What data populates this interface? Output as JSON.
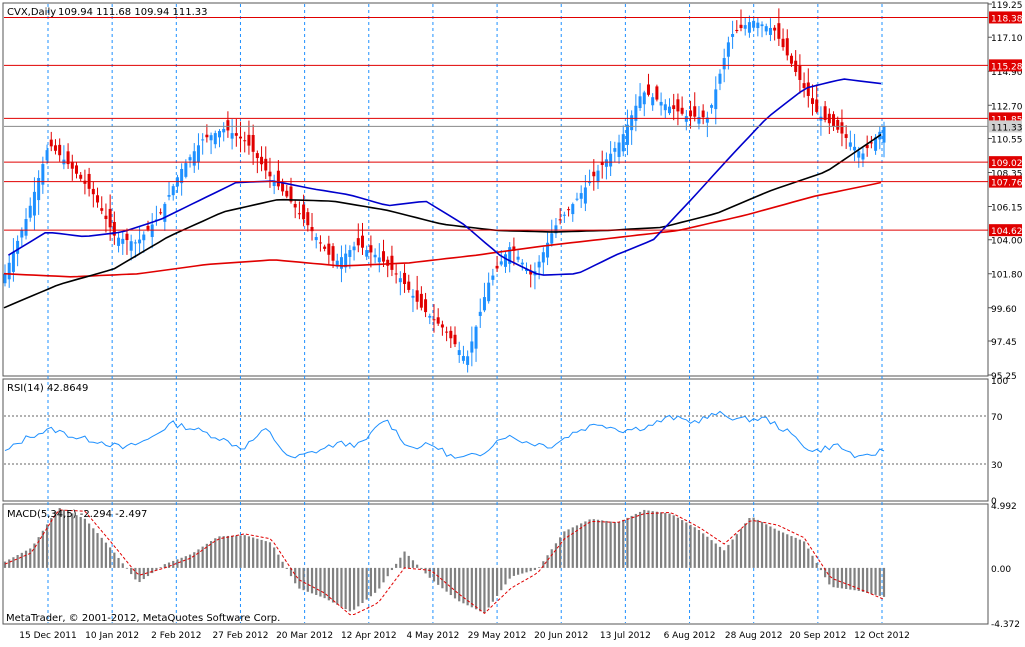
{
  "header": {
    "symbol": "CVX,Daily",
    "ohlc": "109.94 111.68 109.94 111.33"
  },
  "footer": {
    "copyright": "MetaTrader, © 2001-2012, MetaQuotes Software Corp."
  },
  "colors": {
    "bull_candle": "#1e90ff",
    "bear_candle": "#e00000",
    "sma_fast": "#0000cc",
    "sma_mid": "#000000",
    "sma_slow": "#e00000",
    "level_line": "#e00000",
    "rsi_line": "#1e90ff",
    "macd_hist": "#808080",
    "macd_signal": "#e00000",
    "grid": "#1e90ff",
    "border": "#555555"
  },
  "chart_data": [
    {
      "type": "candlestick",
      "panel": "price",
      "x_labels": [
        "15 Dec 2011",
        "10 Jan 2012",
        "2 Feb 2012",
        "27 Feb 2012",
        "20 Mar 2012",
        "12 Apr 2012",
        "4 May 2012",
        "29 May 2012",
        "20 Jun 2012",
        "13 Jul 2012",
        "6 Aug 2012",
        "28 Aug 2012",
        "20 Sep 2012",
        "12 Oct 2012"
      ],
      "y_ticks": [
        "119.25",
        "117.10",
        "114.90",
        "112.70",
        "110.55",
        "108.35",
        "106.15",
        "104.00",
        "101.80",
        "99.60",
        "97.45",
        "95.25"
      ],
      "ylim": [
        95.25,
        119.25
      ],
      "levels": [
        {
          "label": "118.38",
          "value": 118.38
        },
        {
          "label": "115.28",
          "value": 115.28
        },
        {
          "label": "111.85",
          "value": 111.85
        },
        {
          "label": "109.02",
          "value": 109.02
        },
        {
          "label": "107.76",
          "value": 107.76
        },
        {
          "label": "104.62",
          "value": 104.62
        }
      ],
      "current_price": {
        "label": "111.33",
        "value": 111.33
      },
      "close_anchors": [
        101.8,
        105.5,
        110.2,
        108.7,
        107.0,
        104.2,
        103.8,
        105.5,
        108.5,
        110.5,
        111.2,
        110.3,
        108.2,
        106.5,
        104.5,
        102.5,
        103.7,
        102.9,
        101.5,
        99.5,
        98.2,
        96.2,
        101.2,
        103.6,
        101.6,
        104.8,
        106.6,
        108.5,
        110.4,
        113.6,
        112.8,
        112.0,
        111.9,
        117.2,
        118.2,
        117.6,
        114.8,
        112.1,
        111.0,
        109.5,
        111.33
      ],
      "ma_fast_anchors": [
        103.0,
        104.5,
        104.2,
        104.5,
        105.3,
        106.5,
        107.7,
        107.8,
        107.3,
        106.9,
        106.2,
        106.5,
        105.0,
        102.9,
        101.7,
        101.8,
        103.0,
        104.0,
        106.6,
        109.3,
        111.9,
        113.8,
        114.4,
        114.1
      ],
      "ma_mid_anchors": [
        99.6,
        101.1,
        102.1,
        104.2,
        105.8,
        106.6,
        106.5,
        105.9,
        105.0,
        104.6,
        104.5,
        104.6,
        104.8,
        105.7,
        107.2,
        108.4,
        110.8
      ],
      "ma_slow_anchors": [
        101.8,
        101.6,
        101.8,
        102.4,
        102.7,
        102.3,
        102.5,
        103.0,
        103.6,
        104.1,
        104.6,
        105.6,
        106.8,
        107.7
      ]
    },
    {
      "type": "line",
      "panel": "rsi",
      "name": "RSI(14) 42.8649",
      "y_ticks": [
        "100",
        "70",
        "30",
        "0"
      ],
      "ylim": [
        0,
        100
      ],
      "levels": [
        70,
        30
      ],
      "anchors": [
        40,
        53,
        59,
        52,
        49,
        43,
        50,
        64,
        59,
        52,
        43,
        59,
        34,
        40,
        47,
        46,
        68,
        44,
        46,
        34,
        38,
        54,
        48,
        45,
        57,
        64,
        58,
        61,
        69,
        65,
        72,
        67,
        68,
        56,
        40,
        46,
        34,
        42
      ]
    },
    {
      "type": "bar",
      "panel": "macd",
      "name": "MACD(5,34,5) -2.294 -2.497",
      "y_ticks": [
        "4.992",
        "0.00",
        "-4.372"
      ],
      "ylim": [
        -4.372,
        4.992
      ],
      "hist_anchors": [
        0.5,
        1.6,
        4.8,
        3.9,
        1.5,
        -1.2,
        0.3,
        1.1,
        2.5,
        2.6,
        2.0,
        -1.6,
        -2.4,
        -3.5,
        -1.8,
        1.3,
        -0.9,
        -2.6,
        -3.6,
        -0.7,
        -0.1,
        2.9,
        3.9,
        3.6,
        4.6,
        4.3,
        3.1,
        1.4,
        4.1,
        3.0,
        2.1,
        -1.5,
        -1.8,
        -2.3
      ],
      "signal_anchors": [
        0.3,
        1.2,
        4.6,
        4.5,
        2.0,
        -0.6,
        0.0,
        0.8,
        2.3,
        2.7,
        2.3,
        -0.9,
        -2.0,
        -3.8,
        -2.8,
        0.0,
        -0.2,
        -2.0,
        -3.6,
        -1.6,
        -0.4,
        2.3,
        3.7,
        3.6,
        4.3,
        4.4,
        3.3,
        1.9,
        3.8,
        3.4,
        2.4,
        -0.8,
        -1.6,
        -2.5
      ]
    }
  ]
}
